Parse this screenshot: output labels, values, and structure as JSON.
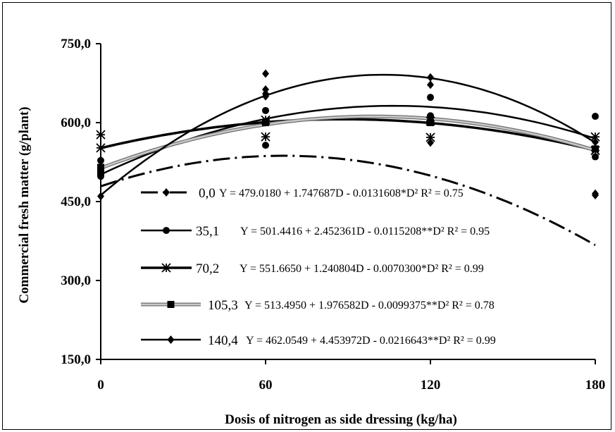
{
  "chart_data": {
    "type": "line",
    "title": "",
    "xlabel": "Dosis of nitrogen as side dressing (kg/ha)",
    "ylabel": "Commercial fresh matter (g/plant)",
    "x_ticks": [
      "0",
      "60",
      "120",
      "180"
    ],
    "y_ticks": [
      "150,0",
      "300,0",
      "450,0",
      "600,0",
      "750,0"
    ],
    "xlim": [
      0,
      180
    ],
    "ylim": [
      150,
      750
    ],
    "grid": false,
    "legend_position": "inside-bottom",
    "series": [
      {
        "name": "0,0",
        "equation": "Y = 479.0180 + 1.747687D - 0.0131608*D² R² = 0.75",
        "coef": [
          479.018,
          1.747687,
          -0.0131608
        ],
        "style": "dash",
        "marker": "diamond",
        "points": [
          [
            0,
            510
          ],
          [
            0,
            500
          ],
          [
            60,
            693
          ],
          [
            60,
            663
          ],
          [
            60,
            650
          ],
          [
            120,
            672
          ],
          [
            120,
            562
          ],
          [
            180,
            465
          ],
          [
            180,
            462
          ]
        ]
      },
      {
        "name": "35,1",
        "equation": "Y = 501.4416 + 2.452361D - 0.0115208**D² R² = 0.95",
        "coef": [
          501.4416,
          2.452361,
          -0.0115208
        ],
        "style": "solid",
        "marker": "circle",
        "points": [
          [
            0,
            528
          ],
          [
            0,
            498
          ],
          [
            60,
            623
          ],
          [
            60,
            557
          ],
          [
            120,
            648
          ],
          [
            120,
            613
          ],
          [
            180,
            612
          ],
          [
            180,
            535
          ]
        ]
      },
      {
        "name": "70,2",
        "equation": "Y = 551.6650 + 1.240804D - 0.0070300*D² R² = 0.99",
        "coef": [
          551.665,
          1.240804,
          -0.00703
        ],
        "style": "solid-thick",
        "marker": "asterisk",
        "points": [
          [
            0,
            577
          ],
          [
            0,
            552
          ],
          [
            60,
            605
          ],
          [
            60,
            573
          ],
          [
            120,
            572
          ],
          [
            120,
            603
          ],
          [
            180,
            573
          ],
          [
            180,
            547
          ]
        ]
      },
      {
        "name": "105,3",
        "equation": "Y = 513.4950 + 1.976582D - 0.0099375**D² R² = 0.78",
        "coef": [
          513.495,
          1.976582,
          -0.0099375
        ],
        "style": "gray-band",
        "marker": "square",
        "points": [
          [
            0,
            515
          ],
          [
            0,
            505
          ],
          [
            60,
            600
          ],
          [
            120,
            600
          ],
          [
            180,
            550
          ]
        ]
      },
      {
        "name": "140,4",
        "equation": "Y = 462.0549 + 4.453972D - 0.0216643**D² R² = 0.99",
        "coef": [
          462.0549,
          4.453972,
          -0.0216643
        ],
        "style": "solid",
        "marker": "diamond",
        "points": [
          [
            0,
            460
          ],
          [
            60,
            655
          ],
          [
            120,
            686
          ],
          [
            180,
            563
          ]
        ]
      }
    ]
  }
}
